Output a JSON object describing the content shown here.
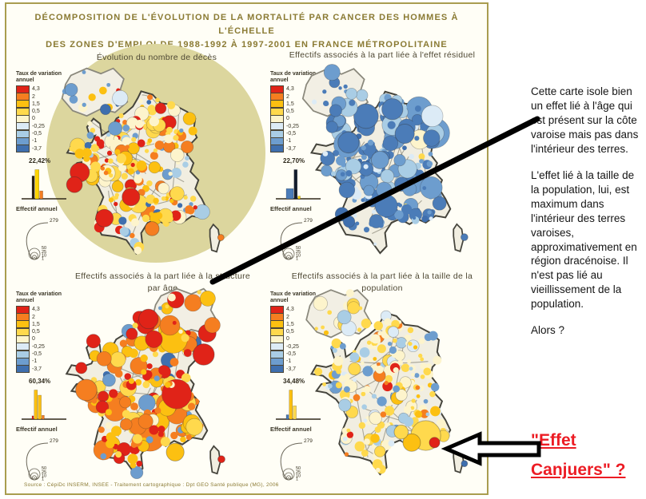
{
  "title": {
    "line1": "DÉCOMPOSITION DE L'ÉVOLUTION DE LA MORTALITÉ PAR CANCER DES HOMMES À L'ÉCHELLE",
    "line2": "DES ZONES D'EMPLOI DE 1988-1992 À 1997-2001 EN FRANCE MÉTROPOLITAINE"
  },
  "source": "Source : CépiDc INSERM, INSEE - Traitement cartographique : Dpt GEO Santé publique (MG), 2006",
  "legend": {
    "scale_title": "Taux de variation annuel",
    "scale_labels": [
      "4,3",
      "2",
      "1,5",
      "0,5",
      "0",
      "-0,25",
      "-0,5",
      "-1",
      "-3,7"
    ],
    "scale_colors": [
      "#e02318",
      "#f57e20",
      "#fcc011",
      "#ffd94d",
      "#fdf4cc",
      "#dcebf6",
      "#a9cde5",
      "#6d9dce",
      "#3f6fae"
    ],
    "effectif_label": "Effectif annuel",
    "effectif_max": "279",
    "circle_labels": [
      "50",
      "25",
      "10",
      "1"
    ]
  },
  "maps": [
    {
      "title": "Évolution du nombre de décès",
      "pct": "22,42%",
      "hist": [
        {
          "c": "#2b2313",
          "w": 3,
          "h": 0.78
        },
        {
          "c": "#ffd400",
          "w": 5,
          "h": 1
        },
        {
          "c": "#f57e20",
          "w": 4,
          "h": 0.26
        }
      ],
      "dots": {
        "count": 235,
        "rmin": 1.2,
        "rmax": 4.3,
        "big": 0.07,
        "palette": [
          [
            "#ffd94d",
            30
          ],
          [
            "#fcc011",
            17
          ],
          [
            "#f57e20",
            13
          ],
          [
            "#e02318",
            8
          ],
          [
            "#fdf4cc",
            16
          ],
          [
            "#a9cde5",
            6
          ],
          [
            "#6d9dce",
            6
          ],
          [
            "#3f6fae",
            4
          ]
        ],
        "features": [
          [
            16,
            62,
            5.5,
            "#e02318"
          ],
          [
            13,
            69,
            4.5,
            "#e02318"
          ],
          [
            45,
            76,
            5,
            "#e02318"
          ],
          [
            30,
            88,
            5,
            "#e02318"
          ],
          [
            57,
            94,
            4,
            "#f57e20"
          ],
          [
            96,
            99,
            1.8,
            "#f57e20"
          ]
        ]
      },
      "inset": {
        "count": 16,
        "rmax": 5.5,
        "palette": [
          [
            "#6d9dce",
            26
          ],
          [
            "#3f6fae",
            18
          ],
          [
            "#a9cde5",
            16
          ],
          [
            "#dcebf6",
            8
          ],
          [
            "#ffd94d",
            14
          ],
          [
            "#fcc011",
            8
          ],
          [
            "#e02318",
            6
          ],
          [
            "#fdf4cc",
            4
          ]
        ]
      }
    },
    {
      "title": "Effectifs associés à la part liée à l'effet résiduel",
      "pct": "22,70%",
      "hist": [
        {
          "c": "#4b7cb8",
          "w": 9,
          "h": 0.34
        },
        {
          "c": "#131c2e",
          "w": 4,
          "h": 1
        },
        {
          "c": "#ffd400",
          "w": 3,
          "h": 0.08
        }
      ],
      "dots": {
        "count": 215,
        "rmin": 1.2,
        "rmax": 5,
        "big": 0.1,
        "north_bias": true,
        "palette": [
          [
            "#4b7cb8",
            48
          ],
          [
            "#6d9dce",
            20
          ],
          [
            "#a9cde5",
            14
          ],
          [
            "#dcebf6",
            9
          ],
          [
            "#3f6fae",
            5
          ],
          [
            "#ffd94d",
            2
          ],
          [
            "#fdf4cc",
            2
          ]
        ],
        "features": [
          [
            40,
            30,
            7,
            "#4b7cb8"
          ],
          [
            55,
            26,
            6,
            "#4b7cb8"
          ],
          [
            30,
            45,
            6,
            "#4b7cb8"
          ],
          [
            62,
            40,
            5.5,
            "#4b7cb8"
          ],
          [
            48,
            55,
            5,
            "#6d9dce"
          ],
          [
            96,
            99,
            2,
            "#4b7cb8"
          ]
        ]
      },
      "inset": {
        "count": 16,
        "rmax": 6,
        "palette": [
          [
            "#4b7cb8",
            40
          ],
          [
            "#6d9dce",
            22
          ],
          [
            "#a9cde5",
            18
          ],
          [
            "#dcebf6",
            10
          ],
          [
            "#ffd94d",
            5
          ],
          [
            "#e02318",
            3
          ]
        ]
      }
    },
    {
      "title": "Effectifs associés à la part liée à la structure par âge",
      "pct": "60,34%",
      "hist": [
        {
          "c": "#e02318",
          "w": 2,
          "h": 0.1
        },
        {
          "c": "#fcc011",
          "w": 4,
          "h": 1
        },
        {
          "c": "#fcc011",
          "w": 4,
          "h": 0.82
        },
        {
          "c": "#f57e20",
          "w": 3,
          "h": 0.12
        }
      ],
      "dots": {
        "count": 195,
        "rmin": 1.6,
        "rmax": 5,
        "big": 0.1,
        "palette": [
          [
            "#e02318",
            20
          ],
          [
            "#f57e20",
            28
          ],
          [
            "#fcc011",
            26
          ],
          [
            "#ffd94d",
            15
          ],
          [
            "#fdf4cc",
            5
          ],
          [
            "#6d9dce",
            4
          ],
          [
            "#3f6fae",
            2
          ]
        ],
        "features": [
          [
            86,
            40,
            6,
            "#e02318"
          ],
          [
            55,
            20,
            5.5,
            "#e02318"
          ],
          [
            20,
            60,
            6,
            "#f57e20"
          ],
          [
            70,
            95,
            5,
            "#fcc011"
          ],
          [
            88,
            28,
            5,
            "#e02318"
          ],
          [
            96,
            99,
            2,
            "#e02318"
          ]
        ]
      },
      "inset": {
        "count": 15,
        "rmax": 6,
        "palette": [
          [
            "#e02318",
            28
          ],
          [
            "#f57e20",
            26
          ],
          [
            "#fcc011",
            22
          ],
          [
            "#ffd94d",
            14
          ],
          [
            "#fdf4cc",
            6
          ],
          [
            "#6d9dce",
            4
          ]
        ]
      }
    },
    {
      "title": "Effectifs associés à la part liée à la taille de la population",
      "pct": "34,48%",
      "hist": [
        {
          "c": "#4b7cb8",
          "w": 3,
          "h": 0.14
        },
        {
          "c": "#fcc011",
          "w": 4,
          "h": 1
        },
        {
          "c": "#ffd94d",
          "w": 4,
          "h": 0.45
        }
      ],
      "dots": {
        "count": 220,
        "rmin": 1.1,
        "rmax": 3.6,
        "big": 0.05,
        "palette": [
          [
            "#fdf4cc",
            30
          ],
          [
            "#ffd94d",
            28
          ],
          [
            "#fcc011",
            9
          ],
          [
            "#dcebf6",
            11
          ],
          [
            "#a9cde5",
            9
          ],
          [
            "#6d9dce",
            7
          ],
          [
            "#e02318",
            3
          ],
          [
            "#f57e20",
            3
          ]
        ],
        "features": [
          [
            74,
            86,
            8.5,
            "#ffd94d"
          ],
          [
            66,
            90,
            5,
            "#fcc011"
          ],
          [
            79,
            90,
            3,
            "#e02318"
          ],
          [
            60,
            84,
            4,
            "#ffd94d"
          ],
          [
            96,
            97,
            2,
            "#6d9dce"
          ],
          [
            96,
            102,
            1.8,
            "#3f6fae"
          ]
        ]
      },
      "inset": {
        "count": 16,
        "rmax": 4.5,
        "palette": [
          [
            "#fdf4cc",
            34
          ],
          [
            "#ffd94d",
            30
          ],
          [
            "#fcc011",
            10
          ],
          [
            "#dcebf6",
            10
          ],
          [
            "#a9cde5",
            8
          ],
          [
            "#e02318",
            5
          ]
        ]
      }
    }
  ],
  "annotations": {
    "p1": "Cette carte isole bien un effet lié à l'âge qui est présent sur la côte varoise mais pas dans l'intérieur des terres.",
    "p2": "L'effet lié à la taille de la population, lui, est maximum dans l'intérieur des terres varoises, approximativement en région dracénoise. Il n'est pas lié au vieillissement de la population.",
    "p3": "Alors ?",
    "highlight": "\"Effet Canjuers\" ?",
    "highlight_color": "#ec1c24"
  },
  "colors": {
    "accent_gold": "#8a7a33",
    "panel_border": "#a99d50",
    "circle_bg": "#dcd69e"
  }
}
